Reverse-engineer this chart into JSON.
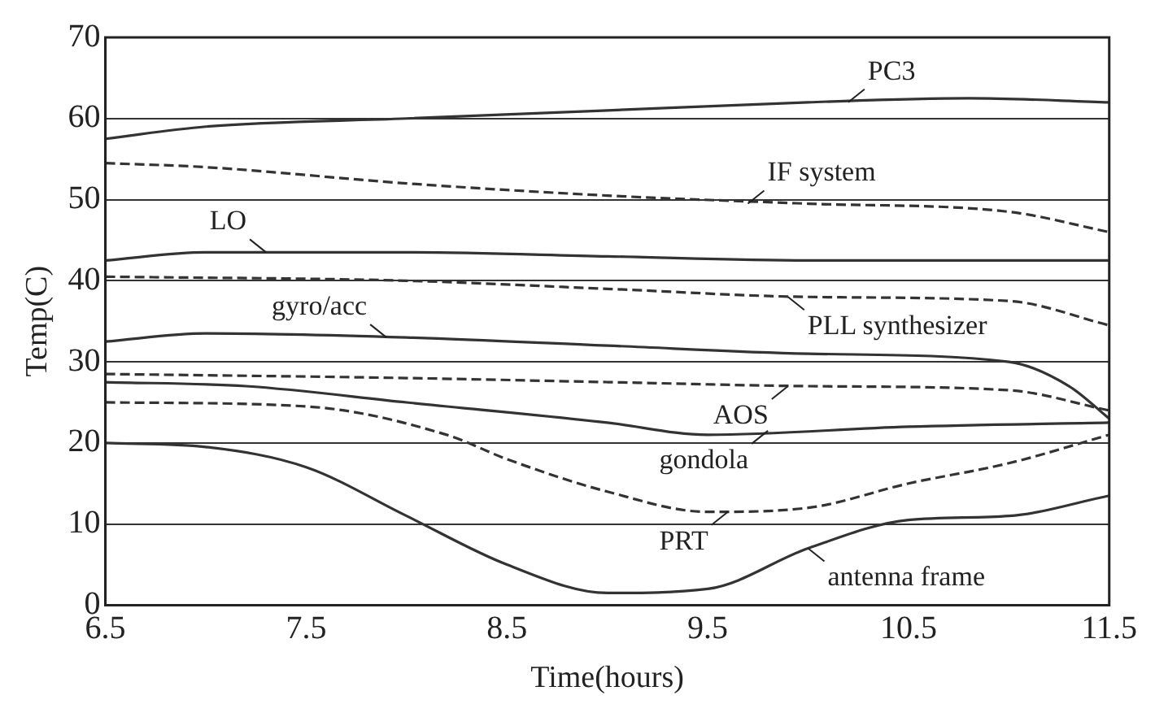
{
  "chart_data": {
    "type": "line",
    "xlabel": "Time(hours)",
    "ylabel": "Temp(C)",
    "xlim": [
      6.5,
      11.5
    ],
    "xticks": [
      6.5,
      7.5,
      8.5,
      9.5,
      10.5,
      11.5
    ],
    "ylim": [
      0,
      70
    ],
    "yticks": [
      0,
      10,
      20,
      30,
      40,
      50,
      60,
      70
    ],
    "grid": "y",
    "legend": false,
    "marker": "none",
    "series": [
      {
        "color": "#333333",
        "line_style": "solid",
        "x": [
          6.5,
          7,
          8,
          9,
          10,
          10.8,
          11.5
        ],
        "values": [
          57.5,
          59,
          60,
          61,
          62,
          62.5,
          62
        ]
      },
      {
        "color": "#333333",
        "line_style": "dashed",
        "x": [
          6.5,
          7,
          8,
          9,
          10,
          11,
          11.5
        ],
        "values": [
          54.5,
          54,
          52,
          50.5,
          49.5,
          48.5,
          46
        ]
      },
      {
        "color": "#333333",
        "line_style": "solid",
        "x": [
          6.5,
          7,
          8,
          9,
          10,
          11,
          11.5
        ],
        "values": [
          42.5,
          43.5,
          43.5,
          43,
          42.5,
          42.5,
          42.5
        ]
      },
      {
        "color": "#333333",
        "line_style": "dashed",
        "x": [
          6.5,
          8,
          9,
          10,
          11,
          11.5
        ],
        "values": [
          40.5,
          40,
          39,
          38,
          37.5,
          34.5
        ]
      },
      {
        "color": "#333333",
        "line_style": "solid",
        "x": [
          6.5,
          7,
          8,
          9,
          10,
          11,
          11.3,
          11.5
        ],
        "values": [
          32.5,
          33.5,
          33,
          32,
          31,
          30,
          27,
          23
        ]
      },
      {
        "color": "#333333",
        "line_style": "dashed",
        "x": [
          6.5,
          8,
          9,
          10,
          11,
          11.5
        ],
        "values": [
          28.5,
          28,
          27.5,
          27,
          26.5,
          24
        ]
      },
      {
        "color": "#333333",
        "line_style": "solid",
        "x": [
          6.5,
          7.2,
          8,
          9,
          9.5,
          10.5,
          11.5
        ],
        "values": [
          27.5,
          27,
          25,
          22.5,
          21,
          22,
          22.5
        ]
      },
      {
        "color": "#333333",
        "line_style": "dashed",
        "x": [
          6.5,
          7.5,
          8.2,
          8.5,
          9,
          9.5,
          10,
          10.5,
          11,
          11.5
        ],
        "values": [
          25,
          24.5,
          21,
          18,
          14,
          11.5,
          12,
          15,
          17.5,
          21
        ]
      },
      {
        "color": "#333333",
        "line_style": "solid",
        "x": [
          6.5,
          7,
          7.5,
          8,
          8.5,
          9,
          9.5,
          10,
          10.5,
          11,
          11.5
        ],
        "values": [
          20,
          19.5,
          17,
          11,
          5,
          1.5,
          2,
          7,
          10.5,
          11,
          13.5
        ]
      }
    ],
    "annotations": [
      {
        "text": "PC3",
        "x": 10.2,
        "y": 62
      },
      {
        "text": "IF system",
        "x": 9.7,
        "y": 49.5
      },
      {
        "text": "LO",
        "x": 7.3,
        "y": 43.5
      },
      {
        "text": "PLL synthesizer",
        "x": 9.9,
        "y": 38
      },
      {
        "text": "gyro/acc",
        "x": 7.9,
        "y": 33
      },
      {
        "text": "AOS",
        "x": 9.9,
        "y": 27
      },
      {
        "text": "gondola",
        "x": 9.8,
        "y": 21.5
      },
      {
        "text": "PRT",
        "x": 9.6,
        "y": 11.5
      },
      {
        "text": "antenna frame",
        "x": 10,
        "y": 7
      }
    ]
  }
}
